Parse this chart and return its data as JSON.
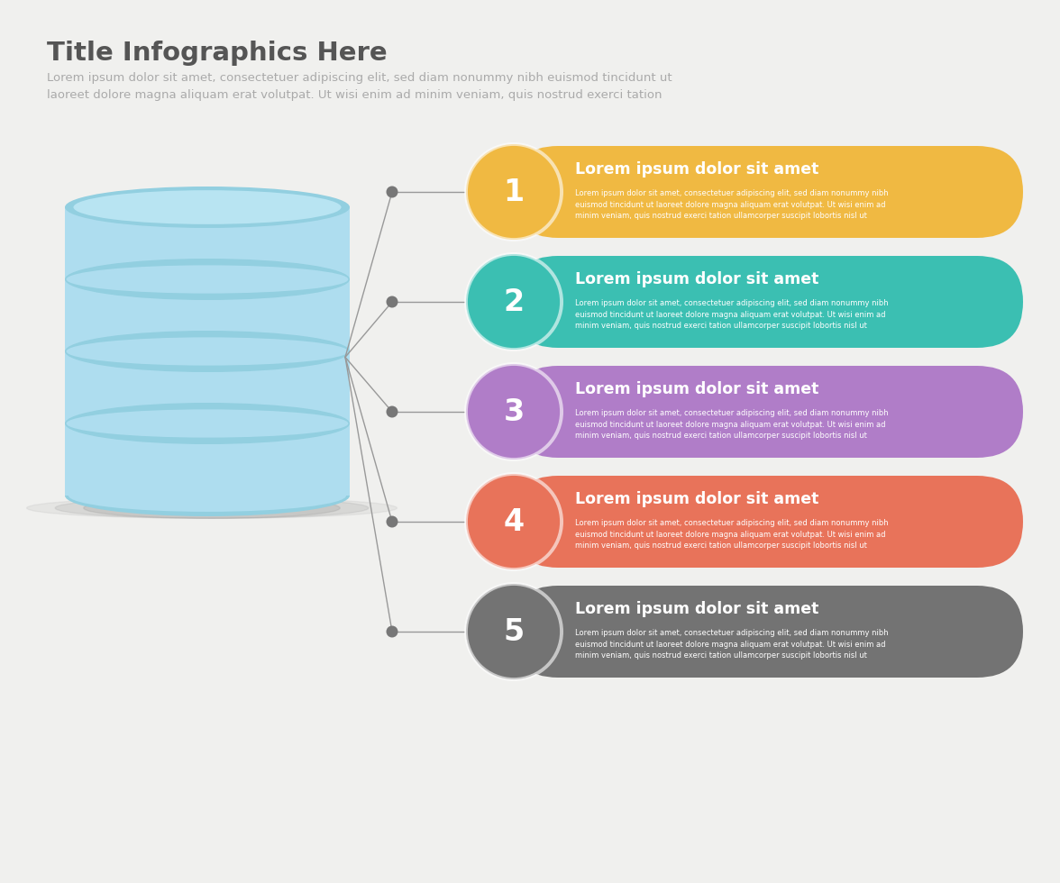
{
  "title": "Title Infographics Here",
  "subtitle": "Lorem ipsum dolor sit amet, consectetuer adipiscing elit, sed diam nonummy nibh euismod tincidunt ut\nlaoreet dolore magna aliquam erat volutpat. Ut wisi enim ad minim veniam, quis nostrud exerci tation",
  "background_color": "#f0f0ee",
  "title_color": "#555555",
  "subtitle_color": "#aaaaaa",
  "items": [
    {
      "number": "1",
      "color": "#f0b942",
      "title": "Lorem ipsum dolor sit amet",
      "body": "Lorem ipsum dolor sit amet, consectetuer adipiscing elit, sed diam nonummy nibh\neuismod tincidunt ut laoreet dolore magna aliquam erat volutpat. Ut wisi enim ad\nminim veniam, quis nostrud exerci tation ullamcorper suscipit lobortis nisl ut"
    },
    {
      "number": "2",
      "color": "#3bbfb2",
      "title": "Lorem ipsum dolor sit amet",
      "body": "Lorem ipsum dolor sit amet, consectetuer adipiscing elit, sed diam nonummy nibh\neuismod tincidunt ut laoreet dolore magna aliquam erat volutpat. Ut wisi enim ad\nminim veniam, quis nostrud exerci tation ullamcorper suscipit lobortis nisl ut"
    },
    {
      "number": "3",
      "color": "#b07dc8",
      "title": "Lorem ipsum dolor sit amet",
      "body": "Lorem ipsum dolor sit amet, consectetuer adipiscing elit, sed diam nonummy nibh\neuismod tincidunt ut laoreet dolore magna aliquam erat volutpat. Ut wisi enim ad\nminim veniam, quis nostrud exerci tation ullamcorper suscipit lobortis nisl ut"
    },
    {
      "number": "4",
      "color": "#e8735a",
      "title": "Lorem ipsum dolor sit amet",
      "body": "Lorem ipsum dolor sit amet, consectetuer adipiscing elit, sed diam nonummy nibh\neuismod tincidunt ut laoreet dolore magna aliquam erat volutpat. Ut wisi enim ad\nminim veniam, quis nostrud exerci tation ullamcorper suscipit lobortis nisl ut"
    },
    {
      "number": "5",
      "color": "#737373",
      "title": "Lorem ipsum dolor sit amet",
      "body": "Lorem ipsum dolor sit amet, consectetuer adipiscing elit, sed diam nonummy nibh\neuismod tincidunt ut laoreet dolore magna aliquam erat volutpat. Ut wisi enim ad\nminim veniam, quis nostrud exerci tation ullamcorper suscipit lobortis nisl ut"
    }
  ],
  "db_color_body": "#aeddef",
  "db_color_top_inner": "#b8e4f2",
  "db_color_ring": "#92cfe0",
  "db_color_border": "#8ac8da",
  "db_shadow_color": "#cccccc",
  "connector_color": "#999999",
  "dot_color": "#777777"
}
